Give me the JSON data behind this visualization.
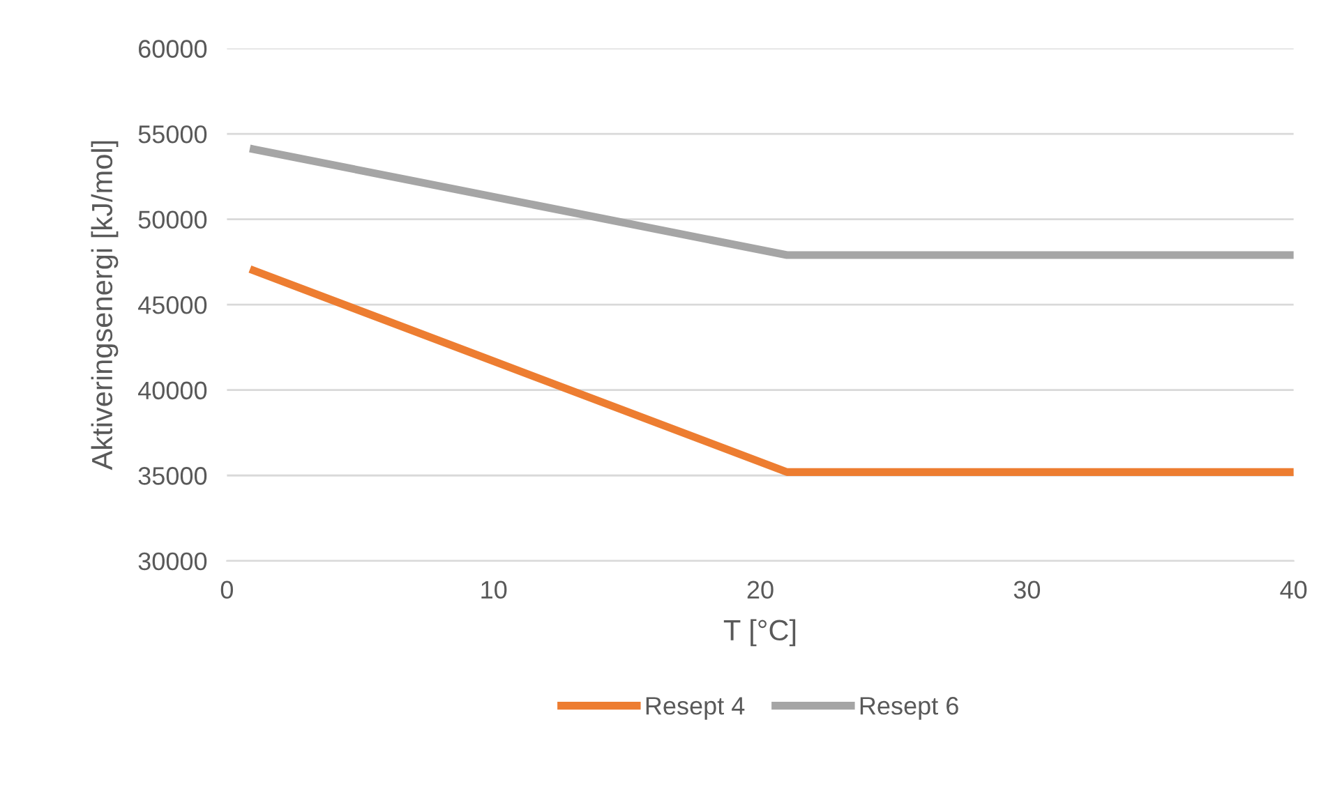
{
  "chart_data": {
    "type": "line",
    "xlabel": "T [°C]",
    "ylabel": "Aktiveringsenergi [kJ/mol]",
    "series": [
      {
        "name": "Resept 4",
        "color": "#ed7d31",
        "x": [
          1,
          21,
          21.5,
          40
        ],
        "values": [
          47000,
          35200,
          35200,
          35200
        ]
      },
      {
        "name": "Resept 6",
        "color": "#a5a5a5",
        "x": [
          1,
          21,
          21.5,
          40
        ],
        "values": [
          54100,
          47900,
          47900,
          47900
        ]
      }
    ],
    "xlim": [
      0,
      40
    ],
    "xticks": [
      0,
      10,
      20,
      30,
      40
    ],
    "ylim": [
      30000,
      60000
    ],
    "yticks": [
      30000,
      35000,
      40000,
      45000,
      50000,
      55000,
      60000
    ],
    "grid": "y",
    "legend": "bottom",
    "marker": "none",
    "line_style": "solid"
  }
}
